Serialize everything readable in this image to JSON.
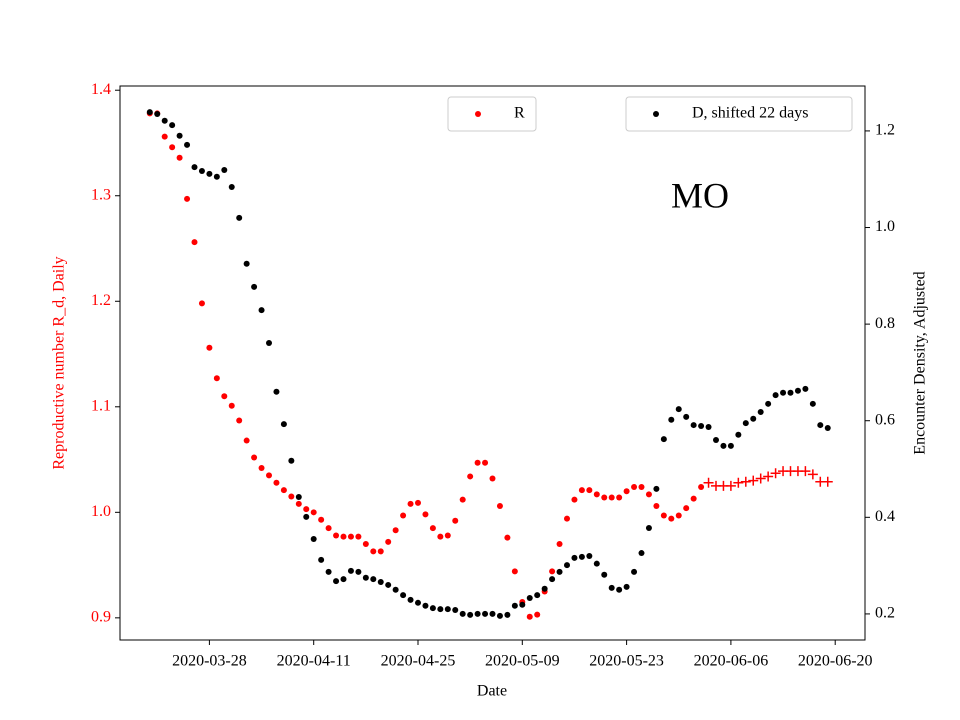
{
  "chart_data": {
    "type": "scatter",
    "annotation": "MO",
    "xlabel": "Date",
    "ylabel": "Reproductive number R_d, Daily",
    "y2label": "Encounter Density, Adjusted",
    "ylabel_color": "#ff0000",
    "x": [
      "2020-03-20",
      "2020-03-21",
      "2020-03-22",
      "2020-03-23",
      "2020-03-24",
      "2020-03-25",
      "2020-03-26",
      "2020-03-27",
      "2020-03-28",
      "2020-03-29",
      "2020-03-30",
      "2020-03-31",
      "2020-04-01",
      "2020-04-02",
      "2020-04-03",
      "2020-04-04",
      "2020-04-05",
      "2020-04-06",
      "2020-04-07",
      "2020-04-08",
      "2020-04-09",
      "2020-04-10",
      "2020-04-11",
      "2020-04-12",
      "2020-04-13",
      "2020-04-14",
      "2020-04-15",
      "2020-04-16",
      "2020-04-17",
      "2020-04-18",
      "2020-04-19",
      "2020-04-20",
      "2020-04-21",
      "2020-04-22",
      "2020-04-23",
      "2020-04-24",
      "2020-04-25",
      "2020-04-26",
      "2020-04-27",
      "2020-04-28",
      "2020-04-29",
      "2020-04-30",
      "2020-05-01",
      "2020-05-02",
      "2020-05-03",
      "2020-05-04",
      "2020-05-05",
      "2020-05-06",
      "2020-05-07",
      "2020-05-08",
      "2020-05-09",
      "2020-05-10",
      "2020-05-11",
      "2020-05-12",
      "2020-05-13",
      "2020-05-14",
      "2020-05-15",
      "2020-05-16",
      "2020-05-17",
      "2020-05-18",
      "2020-05-19",
      "2020-05-20",
      "2020-05-21",
      "2020-05-22",
      "2020-05-23",
      "2020-05-24",
      "2020-05-25",
      "2020-05-26",
      "2020-05-27",
      "2020-05-28",
      "2020-05-29",
      "2020-05-30",
      "2020-05-31",
      "2020-06-01",
      "2020-06-02",
      "2020-06-03",
      "2020-06-04",
      "2020-06-05",
      "2020-06-06",
      "2020-06-07",
      "2020-06-08",
      "2020-06-09",
      "2020-06-10",
      "2020-06-11",
      "2020-06-12",
      "2020-06-13",
      "2020-06-14",
      "2020-06-15",
      "2020-06-16",
      "2020-06-17",
      "2020-06-18",
      "2020-06-19"
    ],
    "series": [
      {
        "name": "R",
        "color": "#ff0000",
        "marker": "o",
        "legend": "upper center",
        "values": [
          1.378,
          1.378,
          1.356,
          1.346,
          1.336,
          1.297,
          1.256,
          1.198,
          1.156,
          1.127,
          1.11,
          1.101,
          1.087,
          1.068,
          1.052,
          1.042,
          1.035,
          1.028,
          1.021,
          1.015,
          1.008,
          1.003,
          1.0,
          0.993,
          0.985,
          0.978,
          0.977,
          0.977,
          0.977,
          0.97,
          0.963,
          0.963,
          0.972,
          0.983,
          0.997,
          1.008,
          1.009,
          0.998,
          0.985,
          0.977,
          0.978,
          0.992,
          1.012,
          1.034,
          1.047,
          1.047,
          1.032,
          1.006,
          0.976,
          0.944,
          0.915,
          0.901,
          0.903,
          0.925,
          0.944,
          0.97,
          0.994,
          1.012,
          1.021,
          1.021,
          1.017,
          1.014,
          1.014,
          1.014,
          1.02,
          1.024,
          1.024,
          1.017,
          1.006,
          0.997,
          0.994,
          0.997,
          1.004,
          1.013,
          1.024,
          null,
          null,
          null,
          null,
          null,
          null,
          null,
          null,
          null,
          null,
          null,
          null,
          null,
          null,
          null,
          null,
          null
        ]
      },
      {
        "color": "#ff0000",
        "marker": "+",
        "values": [
          null,
          null,
          null,
          null,
          null,
          null,
          null,
          null,
          null,
          null,
          null,
          null,
          null,
          null,
          null,
          null,
          null,
          null,
          null,
          null,
          null,
          null,
          null,
          null,
          null,
          null,
          null,
          null,
          null,
          null,
          null,
          null,
          null,
          null,
          null,
          null,
          null,
          null,
          null,
          null,
          null,
          null,
          null,
          null,
          null,
          null,
          null,
          null,
          null,
          null,
          null,
          null,
          null,
          null,
          null,
          null,
          null,
          null,
          null,
          null,
          null,
          null,
          null,
          null,
          null,
          null,
          null,
          null,
          null,
          null,
          null,
          null,
          null,
          null,
          null,
          1.028,
          1.025,
          1.025,
          1.025,
          1.028,
          1.029,
          1.03,
          1.032,
          1.034,
          1.037,
          1.039,
          1.039,
          1.039,
          1.039,
          1.036,
          1.029,
          1.029
        ]
      },
      {
        "name": "D, shifted 22 days",
        "color": "#000000",
        "marker": "o",
        "axis": "y2",
        "legend": "upper right",
        "values": [
          1.239,
          1.235,
          1.221,
          1.212,
          1.19,
          1.171,
          1.125,
          1.117,
          1.111,
          1.105,
          1.119,
          1.084,
          1.02,
          0.925,
          0.877,
          0.829,
          0.761,
          0.66,
          0.593,
          0.517,
          0.442,
          0.401,
          0.355,
          0.312,
          0.287,
          0.268,
          0.272,
          0.289,
          0.287,
          0.275,
          0.272,
          0.266,
          0.26,
          0.25,
          0.239,
          0.229,
          0.223,
          0.217,
          0.212,
          0.21,
          0.21,
          0.208,
          0.2,
          0.198,
          0.2,
          0.2,
          0.2,
          0.196,
          0.198,
          0.217,
          0.219,
          0.233,
          0.239,
          0.252,
          0.272,
          0.287,
          0.301,
          0.316,
          0.318,
          0.32,
          0.304,
          0.281,
          0.254,
          0.25,
          0.256,
          0.287,
          0.326,
          0.378,
          0.459,
          0.562,
          0.602,
          0.624,
          0.608,
          0.591,
          0.589,
          0.587,
          0.56,
          0.548,
          0.548,
          0.571,
          0.595,
          0.604,
          0.618,
          0.635,
          0.653,
          0.658,
          0.658,
          0.662,
          0.666,
          0.635,
          0.591,
          0.585
        ]
      }
    ],
    "xlim": [
      "2020-03-16",
      "2020-06-24"
    ],
    "xticks": [
      "2020-03-28",
      "2020-04-11",
      "2020-04-25",
      "2020-05-09",
      "2020-05-23",
      "2020-06-06",
      "2020-06-20"
    ],
    "ylim": [
      0.879,
      1.404
    ],
    "yticks": [
      0.9,
      {
        "value": 1,
        "label": "1.0"
      },
      1.1,
      1.2,
      1.3,
      1.4
    ],
    "y2lim": [
      0.146,
      1.293
    ],
    "y2ticks": [
      0.2,
      0.4,
      0.6,
      0.8,
      {
        "value": 1,
        "label": "1.0"
      },
      1.2
    ]
  }
}
